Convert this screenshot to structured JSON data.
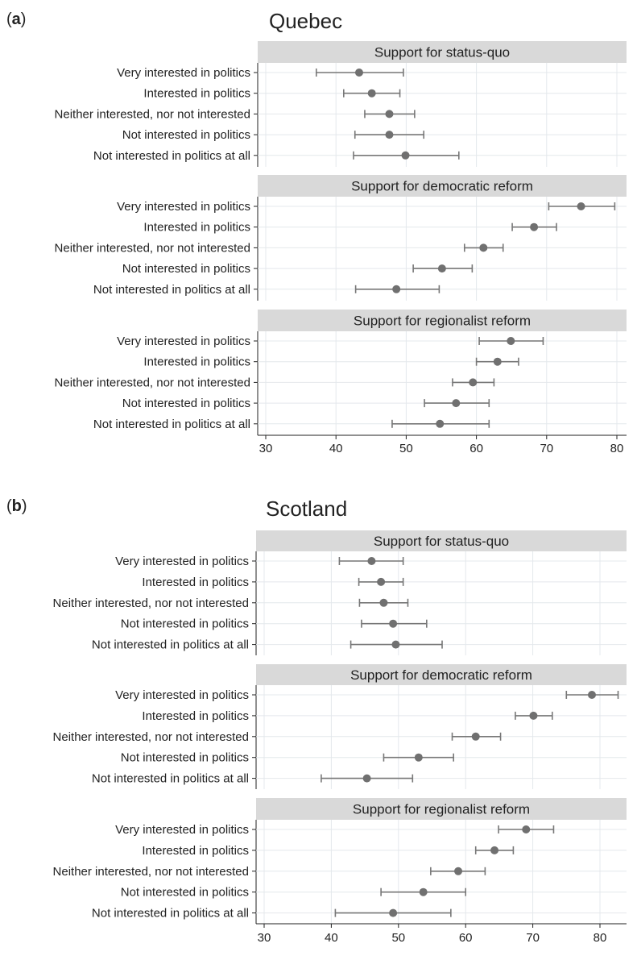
{
  "colors": {
    "strip": "#d9d9d9",
    "grid": "#e4e8ec",
    "marker": "#707070",
    "ci": "#777777",
    "axis": "#222222"
  },
  "chart_data": [
    {
      "type": "scatter",
      "panel_tag": "a",
      "title": "Quebec",
      "xlim": [
        28,
        81
      ],
      "x_ticks": [
        30,
        40,
        50,
        60,
        70,
        80
      ],
      "grid": true,
      "categories": [
        "Very interested in politics",
        "Interested in politics",
        "Neither interested, nor not interested",
        "Not interested in politics",
        "Not interested in politics at all"
      ],
      "subplots": [
        {
          "label": "Support for status-quo",
          "values": [
            43.3,
            45.1,
            47.6,
            47.6,
            49.9
          ],
          "ci_low": [
            37.2,
            41.1,
            44.1,
            42.7,
            42.5
          ],
          "ci_high": [
            49.6,
            49.1,
            51.2,
            52.5,
            57.5
          ]
        },
        {
          "label": "Support for democratic reform",
          "values": [
            74.9,
            68.2,
            61.0,
            55.1,
            48.6
          ],
          "ci_low": [
            70.3,
            65.1,
            58.3,
            51.0,
            42.8
          ],
          "ci_high": [
            79.7,
            71.4,
            63.8,
            59.4,
            54.7
          ]
        },
        {
          "label": "Support for regionalist reform",
          "values": [
            64.9,
            63.0,
            59.5,
            57.1,
            54.8
          ],
          "ci_low": [
            60.4,
            60.0,
            56.6,
            52.6,
            48.0
          ],
          "ci_high": [
            69.5,
            66.0,
            62.5,
            61.8,
            61.8
          ]
        }
      ]
    },
    {
      "type": "scatter",
      "panel_tag": "b",
      "title": "Scotland",
      "xlim": [
        28.5,
        83.5
      ],
      "x_ticks": [
        30,
        40,
        50,
        60,
        70,
        80
      ],
      "grid": true,
      "categories": [
        "Very interested in politics",
        "Interested in politics",
        "Neither interested, nor not interested",
        "Not interested in politics",
        "Not interested in politics at all"
      ],
      "subplots": [
        {
          "label": "Support for status-quo",
          "values": [
            46.0,
            47.4,
            47.8,
            49.2,
            49.6
          ],
          "ci_low": [
            41.2,
            44.1,
            44.2,
            44.5,
            42.9
          ],
          "ci_high": [
            50.7,
            50.7,
            51.4,
            54.2,
            56.5
          ]
        },
        {
          "label": "Support for democratic reform",
          "values": [
            78.8,
            70.1,
            61.5,
            53.0,
            45.3
          ],
          "ci_low": [
            75.0,
            67.4,
            58.0,
            47.8,
            38.5
          ],
          "ci_high": [
            82.7,
            72.9,
            65.2,
            58.2,
            52.1
          ]
        },
        {
          "label": "Support for regionalist reform",
          "values": [
            69.0,
            64.3,
            58.9,
            53.7,
            49.2
          ],
          "ci_low": [
            64.9,
            61.5,
            54.8,
            47.4,
            40.6
          ],
          "ci_high": [
            73.1,
            67.1,
            62.9,
            60.0,
            57.8
          ]
        }
      ]
    }
  ]
}
